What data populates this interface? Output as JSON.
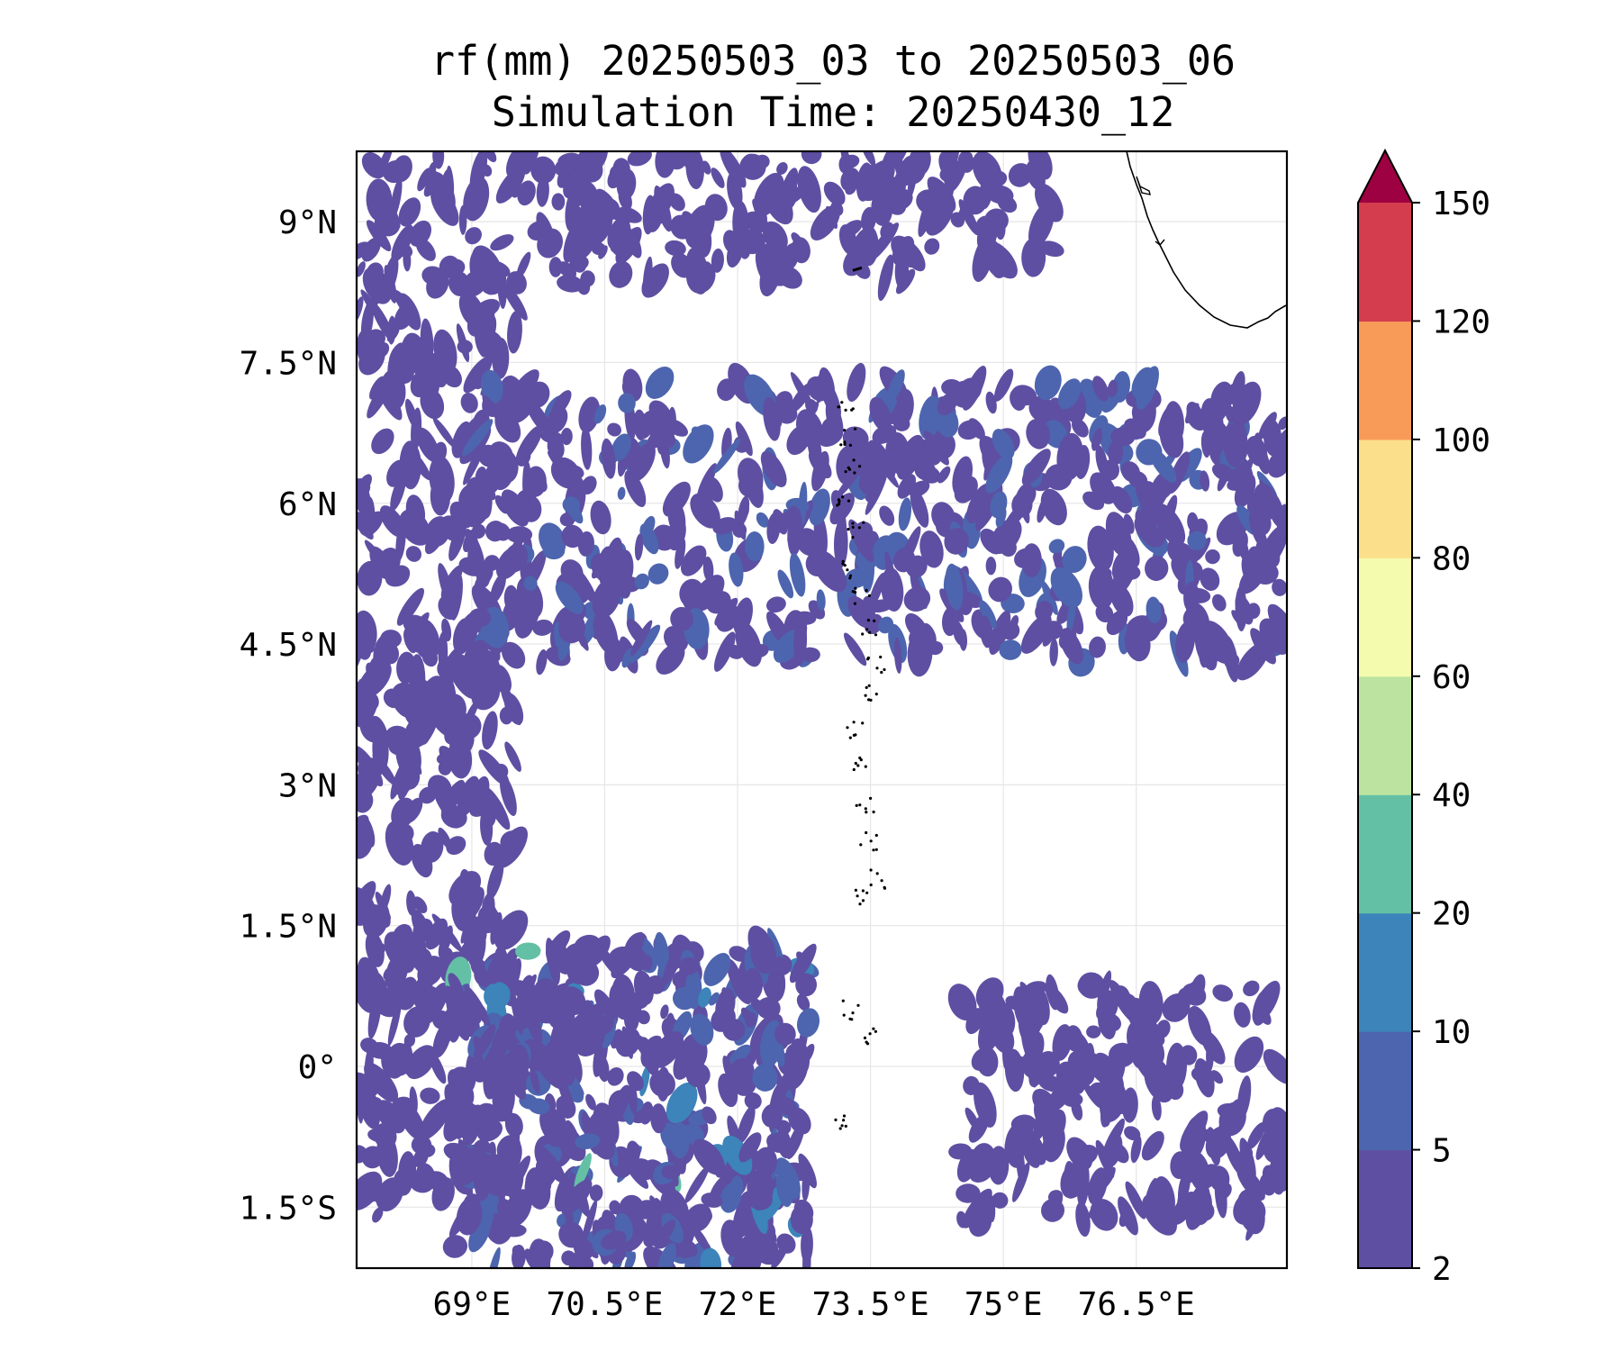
{
  "title": {
    "line1": "rf(mm) 20250503_03 to 20250503_06",
    "line2": "Simulation Time: 20250430_12"
  },
  "map": {
    "lon_range": [
      67.7,
      78.2
    ],
    "lat_range": [
      -2.15,
      9.75
    ],
    "gridlines": true,
    "features": [
      "coastline: southern tip of India (top-right)",
      "Maldives atolls (dotted chain near 73.5°E)"
    ]
  },
  "axes": {
    "lon_ticks": [
      {
        "value": 69,
        "label": "69°E"
      },
      {
        "value": 70.5,
        "label": "70.5°E"
      },
      {
        "value": 72,
        "label": "72°E"
      },
      {
        "value": 73.5,
        "label": "73.5°E"
      },
      {
        "value": 75,
        "label": "75°E"
      },
      {
        "value": 76.5,
        "label": "76.5°E"
      }
    ],
    "lat_ticks": [
      {
        "value": 9,
        "label": "9°N"
      },
      {
        "value": 7.5,
        "label": "7.5°N"
      },
      {
        "value": 6,
        "label": "6°N"
      },
      {
        "value": 4.5,
        "label": "4.5°N"
      },
      {
        "value": 3,
        "label": "3°N"
      },
      {
        "value": 1.5,
        "label": "1.5°N"
      },
      {
        "value": 0,
        "label": "0°"
      },
      {
        "value": -1.5,
        "label": "1.5°S"
      }
    ]
  },
  "colorbar": {
    "extend": "max",
    "levels": [
      "2",
      "5",
      "10",
      "20",
      "40",
      "60",
      "80",
      "100",
      "120",
      "150"
    ],
    "colors": [
      "#5e4fa2",
      "#4d65ae",
      "#3c84b9",
      "#64c0a5",
      "#bce4a0",
      "#f4fbae",
      "#fcdf8a",
      "#f99b58",
      "#d33d4e"
    ],
    "over_color": "#9e0142"
  },
  "chart_data": {
    "type": "heatmap",
    "title": "rf(mm) 20250503_03 to 20250503_06",
    "subtitle": "Simulation Time: 20250430_12",
    "xlabel": "",
    "ylabel": "",
    "xlim": [
      67.7,
      78.2
    ],
    "ylim": [
      -2.15,
      9.75
    ],
    "grid": true,
    "variable": "rf(mm)",
    "rain_regions": [
      {
        "name": "northern band",
        "lon": [
          67.7,
          75.6
        ],
        "lat": [
          8.3,
          9.75
        ],
        "dominant_mm": "2-5"
      },
      {
        "name": "western edge",
        "lon": [
          67.7,
          69.5
        ],
        "lat": [
          -1.6,
          8.2
        ],
        "dominant_mm": "2-5"
      },
      {
        "name": "central belt",
        "lon": [
          69.0,
          78.2
        ],
        "lat": [
          4.3,
          7.3
        ],
        "dominant_mm": "2-10"
      },
      {
        "name": "southwest cluster",
        "lon": [
          68.8,
          72.8
        ],
        "lat": [
          -2.15,
          1.3
        ],
        "dominant_mm": "2-20"
      },
      {
        "name": "southeast band",
        "lon": [
          74.5,
          78.2
        ],
        "lat": [
          -1.7,
          0.9
        ],
        "dominant_mm": "2-5"
      }
    ]
  }
}
